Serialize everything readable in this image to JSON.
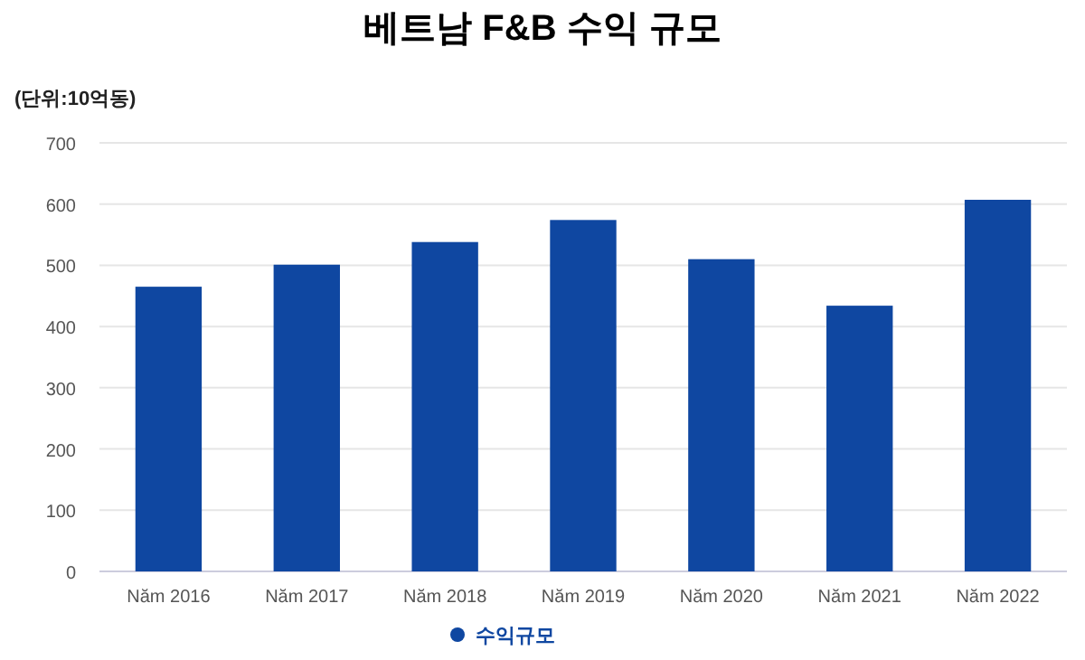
{
  "chart_data": {
    "type": "bar",
    "title": "베트남 F&B 수익 규모",
    "ylabel": "(단위:10억동)",
    "categories": [
      "Năm 2016",
      "Năm 2017",
      "Năm 2018",
      "Năm 2019",
      "Năm 2020",
      "Năm 2021",
      "Năm 2022"
    ],
    "series": [
      {
        "name": "수익규모",
        "color": "#0f47a1",
        "values": [
          465,
          501,
          538,
          574,
          510,
          434,
          607
        ]
      }
    ],
    "ylim": [
      0,
      700
    ],
    "yticks": [
      0,
      100,
      200,
      300,
      400,
      500,
      600,
      700
    ],
    "grid": "y",
    "legend": "bottom"
  }
}
